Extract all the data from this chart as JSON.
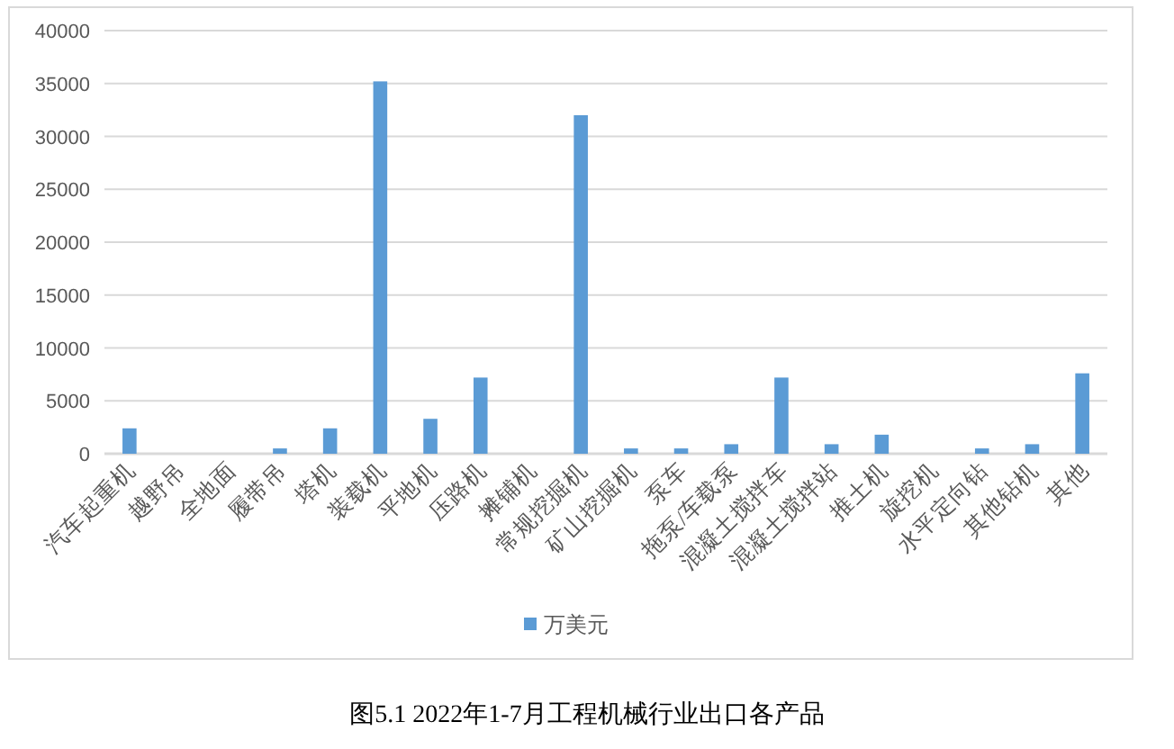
{
  "chart_data": {
    "type": "bar",
    "categories": [
      "汽车起重机",
      "越野吊",
      "全地面",
      "履带吊",
      "塔机",
      "装载机",
      "平地机",
      "压路机",
      "摊铺机",
      "常规挖掘机",
      "矿山挖掘机",
      "泵车",
      "拖泵/车载泵",
      "混凝土搅拌车",
      "混凝土搅拌站",
      "推土机",
      "旋挖机",
      "水平定向钻",
      "其他钻机",
      "其他"
    ],
    "series": [
      {
        "name": "万美元",
        "color": "#5b9bd5",
        "values": [
          2400,
          0,
          0,
          500,
          2400,
          35200,
          3300,
          7200,
          0,
          32000,
          500,
          500,
          900,
          7200,
          900,
          1800,
          0,
          500,
          900,
          7600
        ]
      }
    ],
    "ylim": [
      0,
      40000
    ],
    "yticks": [
      0,
      5000,
      10000,
      15000,
      20000,
      25000,
      30000,
      35000,
      40000
    ],
    "grid": "y",
    "legend": "bottom",
    "annotations": [
      "图5.1    2022年1-7月工程机械行业出口各产品"
    ]
  }
}
